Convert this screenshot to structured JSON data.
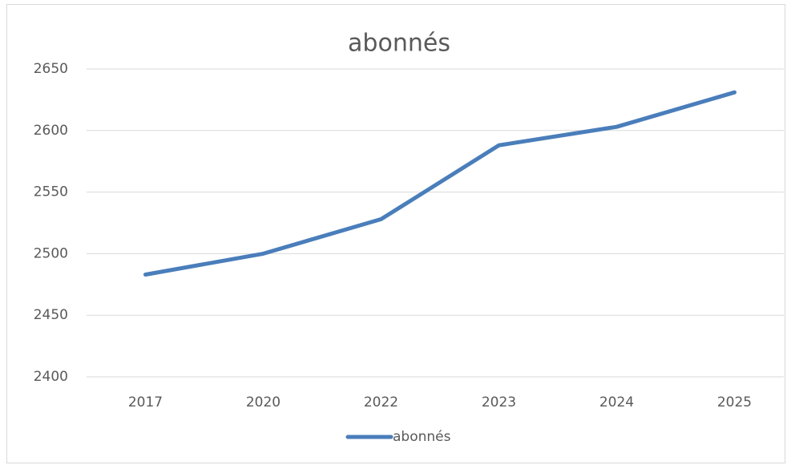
{
  "chart_data": {
    "type": "line",
    "title": "abonnés",
    "categories": [
      "2017",
      "2020",
      "2022",
      "2023",
      "2024",
      "2025"
    ],
    "series": [
      {
        "name": "abonnés",
        "color": "#4a7ebb",
        "values": [
          2483,
          2500,
          2528,
          2588,
          2603,
          2631
        ]
      }
    ],
    "ylim": [
      2400,
      2650
    ],
    "yticks": [
      2400,
      2450,
      2500,
      2550,
      2600,
      2650
    ],
    "grid": true,
    "legend": "bottom"
  }
}
